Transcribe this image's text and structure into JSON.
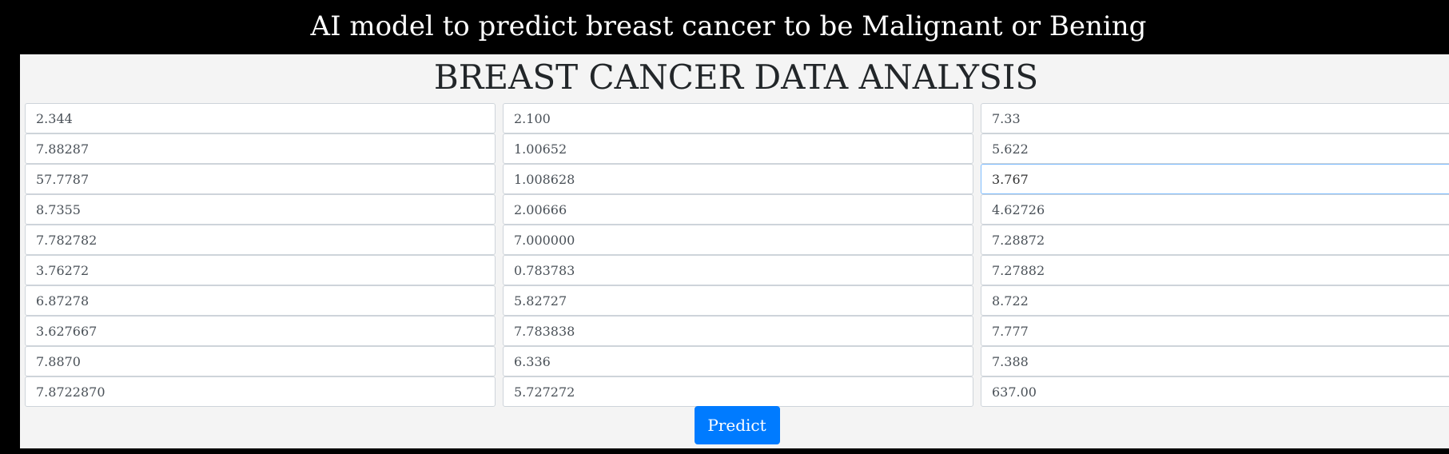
{
  "header": {
    "title": "AI model to predict breast cancer to be Malignant or Bening"
  },
  "main": {
    "title": "BREAST CANCER DATA ANALYSIS",
    "fields": [
      {
        "value": "2.344"
      },
      {
        "value": "2.100"
      },
      {
        "value": "7.33"
      },
      {
        "value": "7.88287"
      },
      {
        "value": "1.00652"
      },
      {
        "value": "5.622"
      },
      {
        "value": "57.7787"
      },
      {
        "value": "1.008628"
      },
      {
        "value": "3.767"
      },
      {
        "value": "8.7355"
      },
      {
        "value": "2.00666"
      },
      {
        "value": "4.62726"
      },
      {
        "value": "7.782782"
      },
      {
        "value": "7.000000"
      },
      {
        "value": "7.28872"
      },
      {
        "value": "3.76272"
      },
      {
        "value": "0.783783"
      },
      {
        "value": "7.27882"
      },
      {
        "value": "6.87278"
      },
      {
        "value": "5.82727"
      },
      {
        "value": "8.722"
      },
      {
        "value": "3.627667"
      },
      {
        "value": "7.783838"
      },
      {
        "value": "7.777"
      },
      {
        "value": "7.8870"
      },
      {
        "value": "6.336"
      },
      {
        "value": "7.388"
      },
      {
        "value": "7.8722870"
      },
      {
        "value": "5.727272"
      },
      {
        "value": "637.00"
      }
    ],
    "predict_label": "Predict"
  },
  "colors": {
    "header_bg": "#000000",
    "panel_bg": "#f4f4f4",
    "button_bg": "#007bff",
    "focus_border": "#80bdff"
  }
}
